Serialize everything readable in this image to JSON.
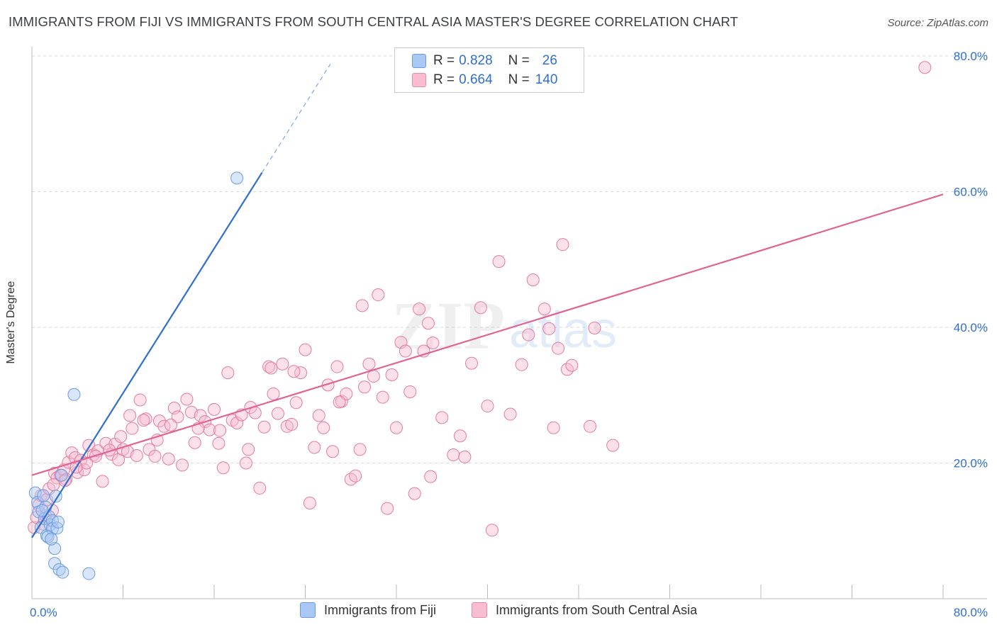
{
  "title": "IMMIGRANTS FROM FIJI VS IMMIGRANTS FROM SOUTH CENTRAL ASIA MASTER'S DEGREE CORRELATION CHART",
  "source": "Source: ZipAtlas.com",
  "watermark": {
    "zip": "ZIP",
    "atlas": "atlas"
  },
  "legend_top": {
    "rows": [
      {
        "r_label": "R =",
        "r_value": "0.828",
        "n_label": "N =",
        "n_value": "26",
        "color": "#aac8f5",
        "border": "#6a9be0"
      },
      {
        "r_label": "R =",
        "r_value": "0.664",
        "n_label": "N =",
        "n_value": "140",
        "color": "#f8bdd0",
        "border": "#e88aa8"
      }
    ]
  },
  "legend_bottom": [
    {
      "label": "Immigrants from Fiji",
      "color": "#aac8f5",
      "border": "#6a9be0"
    },
    {
      "label": "Immigrants from South Central Asia",
      "color": "#f8bdd0",
      "border": "#e88aa8"
    }
  ],
  "chart_data": {
    "type": "scatter",
    "xlabel": "",
    "ylabel": "Master's Degree",
    "xlim": [
      0,
      80
    ],
    "ylim": [
      0,
      80
    ],
    "x_tick_labels": [
      "0.0%",
      "80.0%"
    ],
    "y_ticks": [
      20,
      40,
      60,
      80
    ],
    "y_tick_labels": [
      "20.0%",
      "40.0%",
      "60.0%",
      "80.0%"
    ],
    "grid": true,
    "series": [
      {
        "name": "Immigrants from Fiji",
        "color": "#6a9be0",
        "fill": "rgba(170,200,245,0.45)",
        "trend": {
          "x": [
            0,
            20.2
          ],
          "y": [
            9.0,
            62.8
          ],
          "dash_to": [
            26.2,
            78.8
          ]
        },
        "points": [
          [
            0.3,
            15.6
          ],
          [
            0.5,
            14.2
          ],
          [
            0.6,
            12.8
          ],
          [
            0.8,
            10.5
          ],
          [
            1.0,
            15.2
          ],
          [
            1.1,
            11.8
          ],
          [
            1.2,
            13.5
          ],
          [
            1.3,
            9.3
          ],
          [
            1.5,
            12.1
          ],
          [
            1.6,
            10.9
          ],
          [
            1.8,
            11.5
          ],
          [
            1.8,
            10.3
          ],
          [
            2.0,
            7.4
          ],
          [
            2.0,
            5.2
          ],
          [
            2.1,
            15.1
          ],
          [
            2.2,
            10.4
          ],
          [
            2.4,
            4.3
          ],
          [
            2.6,
            18.2
          ],
          [
            2.3,
            11.3
          ],
          [
            2.7,
            3.9
          ],
          [
            1.4,
            9.1
          ],
          [
            1.7,
            8.8
          ],
          [
            3.7,
            30.1
          ],
          [
            5.0,
            3.7
          ],
          [
            18.0,
            62.0
          ],
          [
            0.9,
            13.0
          ]
        ]
      },
      {
        "name": "Immigrants from South Central Asia",
        "color": "#e47ba0",
        "fill": "rgba(248,189,208,0.45)",
        "trend": {
          "x": [
            0,
            80
          ],
          "y": [
            18.2,
            59.6
          ]
        },
        "points": [
          [
            0.2,
            10.5
          ],
          [
            0.4,
            12.0
          ],
          [
            0.6,
            13.8
          ],
          [
            0.8,
            15.2
          ],
          [
            1.0,
            11.0
          ],
          [
            1.3,
            14.6
          ],
          [
            1.5,
            16.2
          ],
          [
            1.8,
            13.0
          ],
          [
            2.0,
            18.5
          ],
          [
            2.2,
            17.8
          ],
          [
            2.5,
            18.2
          ],
          [
            2.8,
            19.0
          ],
          [
            3.0,
            17.6
          ],
          [
            3.2,
            20.1
          ],
          [
            3.5,
            21.5
          ],
          [
            3.8,
            20.8
          ],
          [
            4.0,
            18.6
          ],
          [
            4.3,
            20.4
          ],
          [
            4.6,
            19.0
          ],
          [
            5.0,
            22.6
          ],
          [
            5.4,
            21.2
          ],
          [
            5.8,
            21.8
          ],
          [
            6.2,
            17.3
          ],
          [
            6.5,
            22.9
          ],
          [
            7.0,
            21.3
          ],
          [
            7.3,
            22.8
          ],
          [
            7.6,
            20.5
          ],
          [
            8.0,
            22.0
          ],
          [
            8.4,
            21.7
          ],
          [
            8.8,
            25.1
          ],
          [
            9.2,
            21.1
          ],
          [
            9.5,
            29.3
          ],
          [
            10.0,
            26.5
          ],
          [
            10.3,
            22.0
          ],
          [
            10.8,
            21.0
          ],
          [
            11.2,
            26.2
          ],
          [
            11.6,
            25.4
          ],
          [
            12.0,
            20.6
          ],
          [
            12.5,
            28.1
          ],
          [
            12.8,
            26.8
          ],
          [
            13.2,
            19.7
          ],
          [
            13.6,
            29.4
          ],
          [
            14.0,
            27.5
          ],
          [
            14.3,
            23.0
          ],
          [
            14.8,
            27.0
          ],
          [
            15.2,
            26.1
          ],
          [
            15.6,
            24.9
          ],
          [
            16.0,
            27.9
          ],
          [
            16.4,
            22.9
          ],
          [
            16.8,
            19.3
          ],
          [
            17.2,
            33.3
          ],
          [
            17.6,
            26.3
          ],
          [
            18.0,
            25.9
          ],
          [
            18.4,
            27.1
          ],
          [
            18.8,
            20.0
          ],
          [
            19.2,
            28.2
          ],
          [
            19.6,
            27.4
          ],
          [
            20.0,
            16.3
          ],
          [
            20.4,
            25.3
          ],
          [
            20.8,
            34.2
          ],
          [
            21.2,
            30.2
          ],
          [
            21.6,
            27.3
          ],
          [
            22.0,
            34.6
          ],
          [
            22.4,
            25.4
          ],
          [
            22.8,
            25.7
          ],
          [
            23.2,
            28.9
          ],
          [
            23.6,
            33.3
          ],
          [
            24.0,
            36.7
          ],
          [
            24.4,
            14.1
          ],
          [
            24.8,
            22.3
          ],
          [
            25.2,
            27.0
          ],
          [
            25.6,
            25.2
          ],
          [
            26.0,
            31.5
          ],
          [
            26.4,
            21.7
          ],
          [
            26.8,
            34.2
          ],
          [
            27.2,
            29.1
          ],
          [
            27.6,
            30.2
          ],
          [
            28.0,
            17.6
          ],
          [
            28.4,
            18.1
          ],
          [
            28.8,
            22.0
          ],
          [
            29.2,
            31.2
          ],
          [
            29.6,
            34.6
          ],
          [
            30.0,
            32.8
          ],
          [
            30.4,
            44.8
          ],
          [
            30.8,
            29.7
          ],
          [
            31.2,
            13.3
          ],
          [
            31.6,
            33.0
          ],
          [
            32.0,
            25.2
          ],
          [
            32.4,
            37.8
          ],
          [
            32.8,
            36.5
          ],
          [
            33.2,
            30.5
          ],
          [
            33.6,
            15.5
          ],
          [
            34.0,
            42.7
          ],
          [
            34.4,
            36.5
          ],
          [
            34.8,
            40.6
          ],
          [
            35.2,
            37.7
          ],
          [
            36.0,
            26.7
          ],
          [
            37.0,
            21.2
          ],
          [
            37.6,
            24.0
          ],
          [
            38.0,
            20.9
          ],
          [
            38.6,
            34.7
          ],
          [
            39.4,
            42.9
          ],
          [
            40.0,
            28.4
          ],
          [
            41.0,
            49.7
          ],
          [
            42.0,
            27.2
          ],
          [
            43.0,
            34.5
          ],
          [
            43.6,
            38.9
          ],
          [
            44.0,
            47.0
          ],
          [
            45.0,
            42.7
          ],
          [
            45.4,
            39.8
          ],
          [
            45.8,
            25.2
          ],
          [
            46.2,
            36.9
          ],
          [
            46.6,
            52.2
          ],
          [
            47.0,
            33.8
          ],
          [
            47.4,
            34.4
          ],
          [
            49.0,
            25.4
          ],
          [
            49.4,
            39.9
          ],
          [
            51.0,
            22.6
          ],
          [
            35.0,
            18.0
          ],
          [
            29.0,
            43.2
          ],
          [
            27.0,
            29.0
          ],
          [
            23.0,
            33.5
          ],
          [
            21.0,
            34.0
          ],
          [
            19.0,
            22.0
          ],
          [
            16.5,
            24.8
          ],
          [
            14.6,
            25.1
          ],
          [
            12.2,
            25.6
          ],
          [
            11.0,
            23.4
          ],
          [
            9.8,
            26.3
          ],
          [
            8.6,
            27.0
          ],
          [
            7.8,
            23.9
          ],
          [
            6.8,
            21.9
          ],
          [
            5.6,
            21.0
          ],
          [
            4.8,
            20.0
          ],
          [
            3.9,
            19.4
          ],
          [
            2.9,
            17.4
          ],
          [
            1.9,
            16.8
          ],
          [
            1.2,
            12.2
          ],
          [
            40.4,
            10.1
          ],
          [
            78.4,
            78.3
          ]
        ]
      }
    ]
  }
}
